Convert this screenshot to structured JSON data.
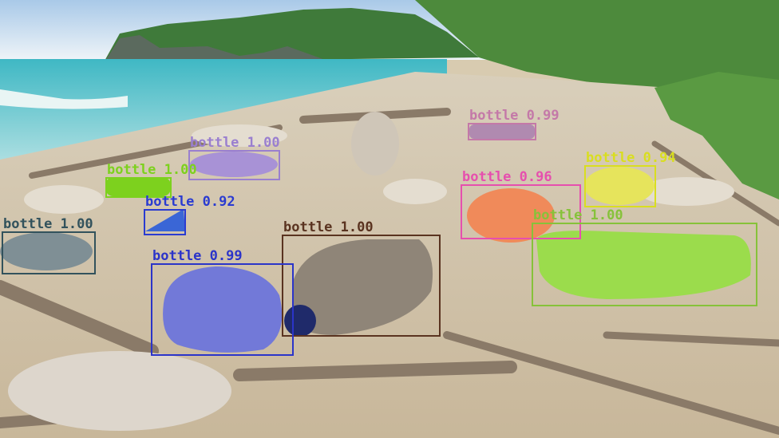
{
  "detections": [
    {
      "label": "bottle 1.00",
      "color": "#32525c"
    },
    {
      "label": "bottle 1.00",
      "color": "#7dd11e"
    },
    {
      "label": "bottle 1.00",
      "color": "#9a7fcf"
    },
    {
      "label": "bottle 0.99",
      "color": "#c479a8"
    },
    {
      "label": "bottle 0.94",
      "color": "#d9de1f"
    },
    {
      "label": "bottle 0.96",
      "color": "#e64fae"
    },
    {
      "label": "bottle 1.00",
      "color": "#86c23a"
    },
    {
      "label": "bottle 0.92",
      "color": "#2a3bd1"
    },
    {
      "label": "bottle 1.00",
      "color": "#5a3320"
    },
    {
      "label": "bottle 0.99",
      "color": "#2b34c9"
    }
  ]
}
